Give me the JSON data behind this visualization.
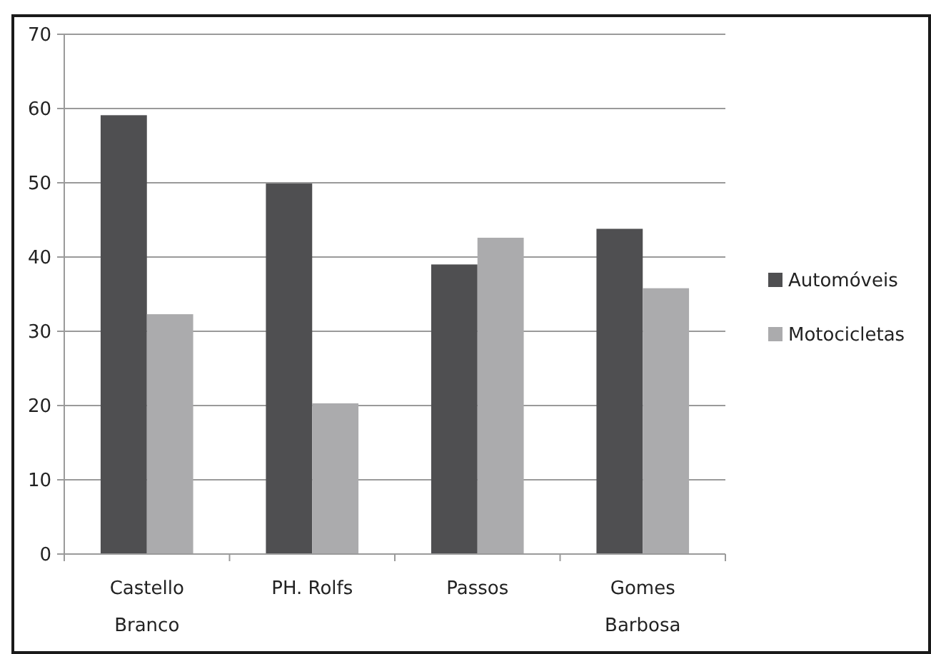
{
  "chart_data": {
    "type": "bar",
    "categories": [
      "Castello\nBranco",
      "PH. Rolfs",
      "Passos",
      "Gomes\nBarbosa"
    ],
    "series": [
      {
        "name": "Automóveis",
        "color": "#4f4f51",
        "values": [
          59.1,
          49.9,
          39.0,
          43.8
        ]
      },
      {
        "name": "Motocicletas",
        "color": "#ababad",
        "values": [
          32.3,
          20.3,
          42.6,
          35.8
        ]
      }
    ],
    "ylim": [
      0,
      70
    ],
    "yticks": [
      0,
      10,
      20,
      30,
      40,
      50,
      60,
      70
    ],
    "grid": "y",
    "legend": "right"
  }
}
